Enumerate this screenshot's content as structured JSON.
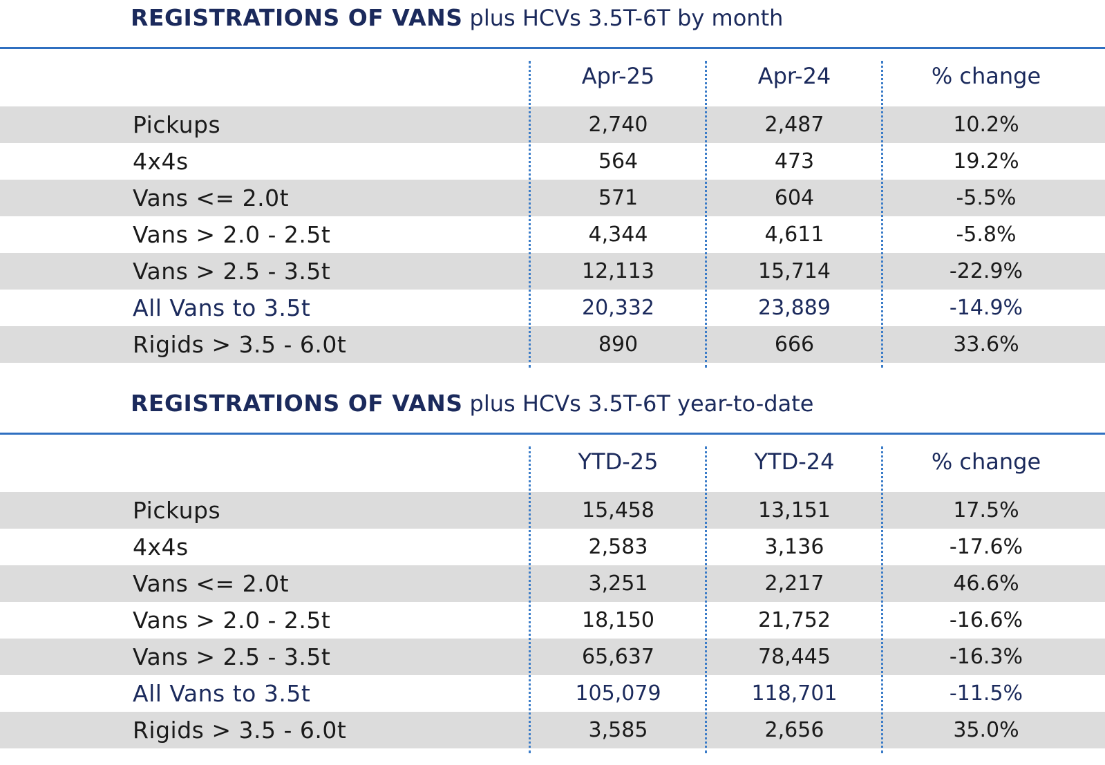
{
  "tables": [
    {
      "title_bold": "REGISTRATIONS OF VANS",
      "title_rest": "plus HCVs 3.5T-6T by month",
      "columns": [
        "Apr-25",
        "Apr-24",
        "% change"
      ],
      "rows": [
        {
          "label": "Pickups",
          "v1": "2,740",
          "v2": "2,487",
          "v3": "10.2%"
        },
        {
          "label": "4x4s",
          "v1": "564",
          "v2": "473",
          "v3": "19.2%"
        },
        {
          "label": "Vans <= 2.0t",
          "v1": "571",
          "v2": "604",
          "v3": "-5.5%"
        },
        {
          "label": "Vans > 2.0 - 2.5t",
          "v1": "4,344",
          "v2": "4,611",
          "v3": "-5.8%"
        },
        {
          "label": "Vans > 2.5 - 3.5t",
          "v1": "12,113",
          "v2": "15,714",
          "v3": "-22.9%"
        },
        {
          "label": "All Vans to 3.5t",
          "v1": "20,332",
          "v2": "23,889",
          "v3": "-14.9%"
        },
        {
          "label": "Rigids > 3.5 - 6.0t",
          "v1": "890",
          "v2": "666",
          "v3": "33.6%"
        }
      ]
    },
    {
      "title_bold": "REGISTRATIONS OF VANS",
      "title_rest": "plus HCVs 3.5T-6T year-to-date",
      "columns": [
        "YTD-25",
        "YTD-24",
        "% change"
      ],
      "rows": [
        {
          "label": "Pickups",
          "v1": "15,458",
          "v2": "13,151",
          "v3": "17.5%"
        },
        {
          "label": "4x4s",
          "v1": "2,583",
          "v2": "3,136",
          "v3": "-17.6%"
        },
        {
          "label": "Vans <= 2.0t",
          "v1": "3,251",
          "v2": "2,217",
          "v3": "46.6%"
        },
        {
          "label": "Vans > 2.0 - 2.5t",
          "v1": "18,150",
          "v2": "21,752",
          "v3": "-16.6%"
        },
        {
          "label": "Vans > 2.5 - 3.5t",
          "v1": "65,637",
          "v2": "78,445",
          "v3": "-16.3%"
        },
        {
          "label": "All Vans to 3.5t",
          "v1": "105,079",
          "v2": "118,701",
          "v3": "-11.5%"
        },
        {
          "label": "Rigids > 3.5 - 6.0t",
          "v1": "3,585",
          "v2": "2,656",
          "v3": "35.0%"
        }
      ]
    }
  ],
  "colors": {
    "title": "#1b2a5c",
    "rule": "#2f6fc0",
    "divider": "#3b7cc8",
    "row_shade": "#dcdcdc",
    "total_row_text": "#1b2a5c"
  }
}
